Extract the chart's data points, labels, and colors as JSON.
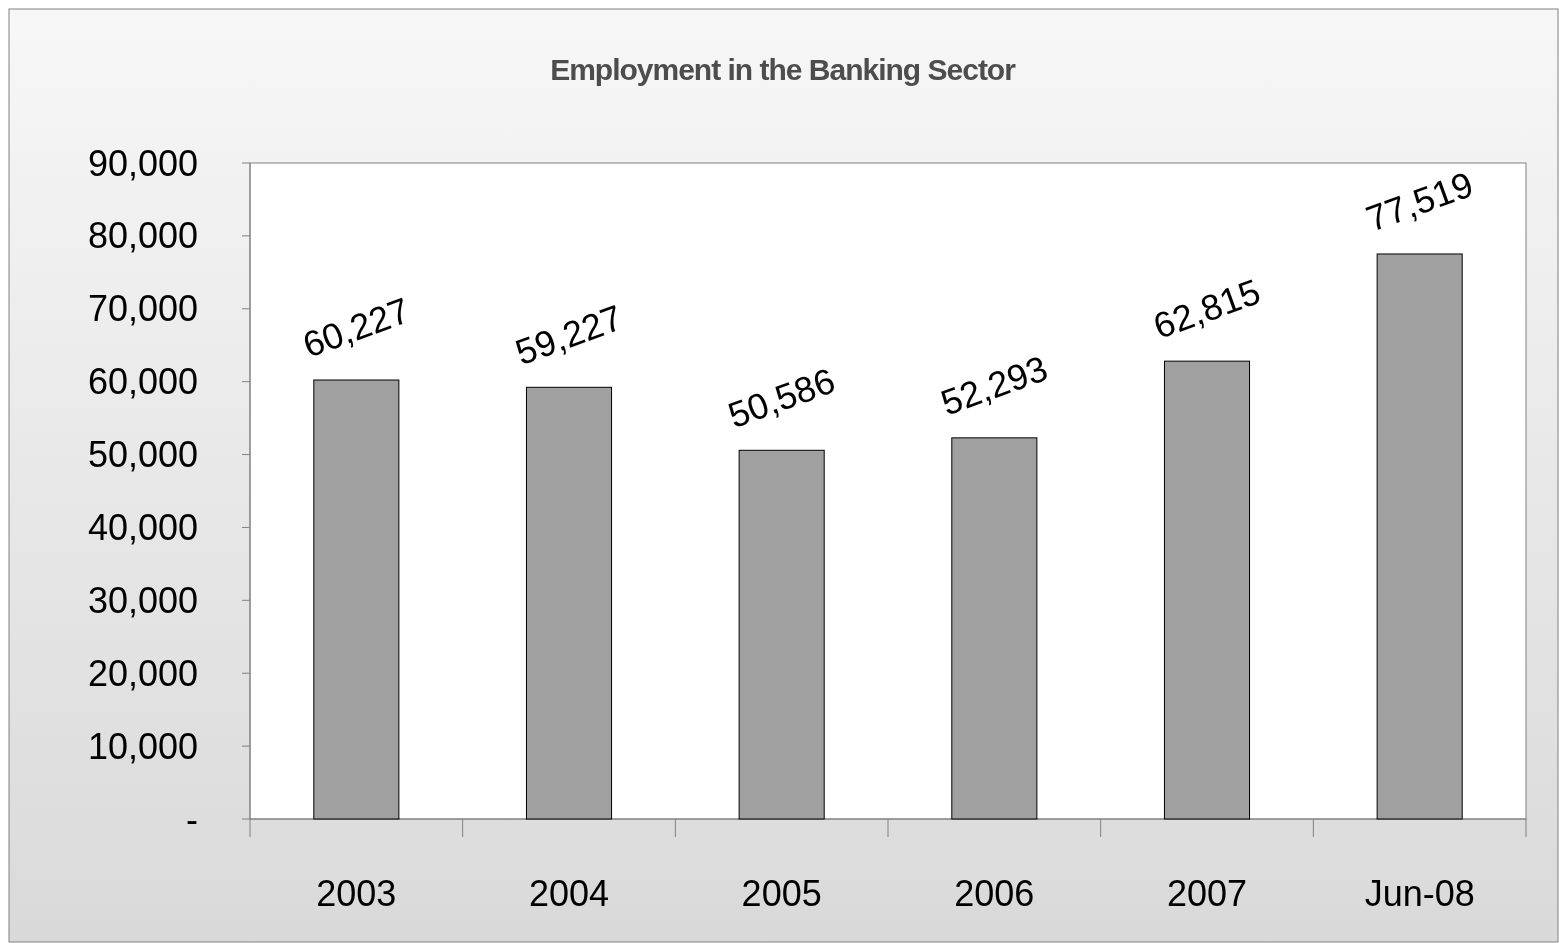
{
  "chart_data": {
    "type": "bar",
    "title": "Employment in the Banking Sector",
    "categories": [
      "2003",
      "2004",
      "2005",
      "2006",
      "2007",
      "Jun-08"
    ],
    "values": [
      60227,
      59227,
      50586,
      52293,
      62815,
      77519
    ],
    "color": "#a0a0a0",
    "ylim": [
      0,
      90000
    ],
    "yticks": [
      {
        "value": 0,
        "label": "-"
      },
      {
        "value": 10000,
        "label": "10,000"
      },
      {
        "value": 20000,
        "label": "20,000"
      },
      {
        "value": 30000,
        "label": "30,000"
      },
      {
        "value": 40000,
        "label": "40,000"
      },
      {
        "value": 50000,
        "label": "50,000"
      },
      {
        "value": 60000,
        "label": "60,000"
      },
      {
        "value": 70000,
        "label": "70,000"
      },
      {
        "value": 80000,
        "label": "80,000"
      },
      {
        "value": 90000,
        "label": "90,000"
      }
    ],
    "value_labels": [
      "60,227",
      "59,227",
      "50,586",
      "52,293",
      "62,815",
      "77,519"
    ],
    "grid": false
  }
}
